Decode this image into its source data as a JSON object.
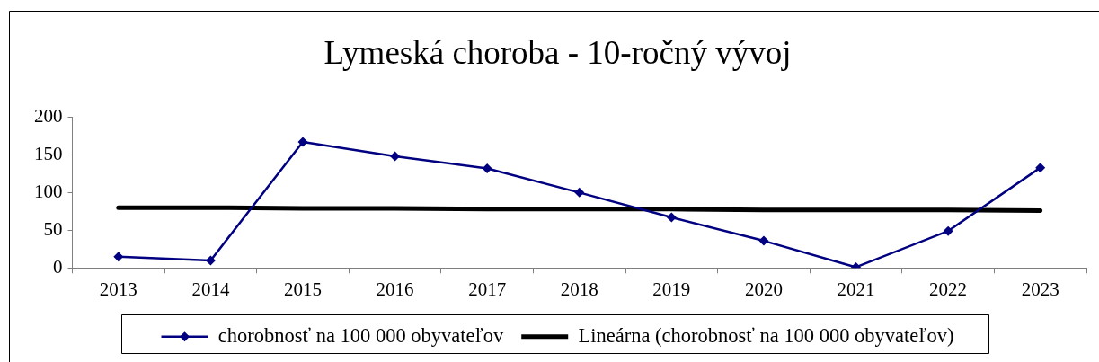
{
  "chart_data": {
    "type": "line",
    "title": "Lymeská choroba - 10-ročný vývoj",
    "categories": [
      "2013",
      "2014",
      "2015",
      "2016",
      "2017",
      "2018",
      "2019",
      "2020",
      "2021",
      "2022",
      "2023"
    ],
    "series": [
      {
        "name": "chorobnosť na 100 000 obyvateľov",
        "color": "#000080",
        "values": [
          15,
          10,
          167,
          148,
          132,
          100,
          67,
          36,
          1,
          49,
          133
        ]
      },
      {
        "name": "Lineárna (chorobnosť na 100 000 obyvateľov)",
        "type": "line",
        "color": "#000000",
        "values": [
          80,
          80,
          79,
          79,
          78,
          78,
          78,
          77,
          77,
          77,
          76
        ],
        "marker": "none"
      }
    ],
    "ylim": [
      0,
      200
    ],
    "yticks": [
      0,
      50,
      100,
      150,
      200
    ],
    "grid": false,
    "legend": "bottom",
    "marker": "diamond"
  }
}
